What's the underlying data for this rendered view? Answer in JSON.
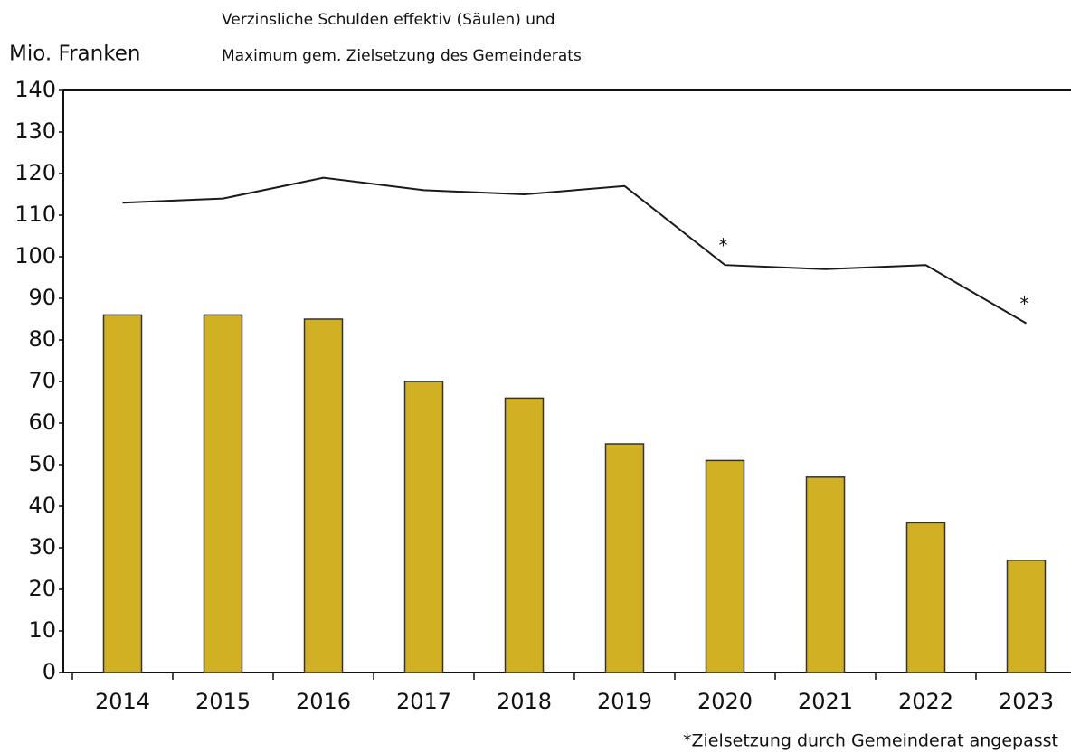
{
  "chart_data": {
    "type": "bar",
    "title": [
      "Verzinsliche Schulden effektiv (Säulen) und",
      "Maximum gem. Zielsetzung des Gemeinderats"
    ],
    "y_label": "Mio. Franken",
    "footnote": "*Zielsetzung durch Gemeinderat angepasst",
    "categories": [
      "2014",
      "2015",
      "2016",
      "2017",
      "2018",
      "2019",
      "2020",
      "2021",
      "2022",
      "2023"
    ],
    "series": [
      {
        "type": "bar",
        "color": "#d2b023",
        "values": [
          86,
          86,
          85,
          70,
          66,
          55,
          51,
          47,
          36,
          27
        ]
      },
      {
        "type": "line",
        "color": "#1a1a1a",
        "values": [
          113,
          114,
          119,
          116,
          115,
          117,
          98,
          97,
          98,
          84
        ],
        "point_labels": [
          null,
          null,
          null,
          null,
          null,
          null,
          "*",
          null,
          null,
          "*"
        ]
      }
    ],
    "ylim": [
      0,
      140
    ],
    "yticks": [
      0,
      10,
      20,
      30,
      40,
      50,
      60,
      70,
      80,
      90,
      100,
      110,
      120,
      130,
      140
    ],
    "grid": false
  }
}
